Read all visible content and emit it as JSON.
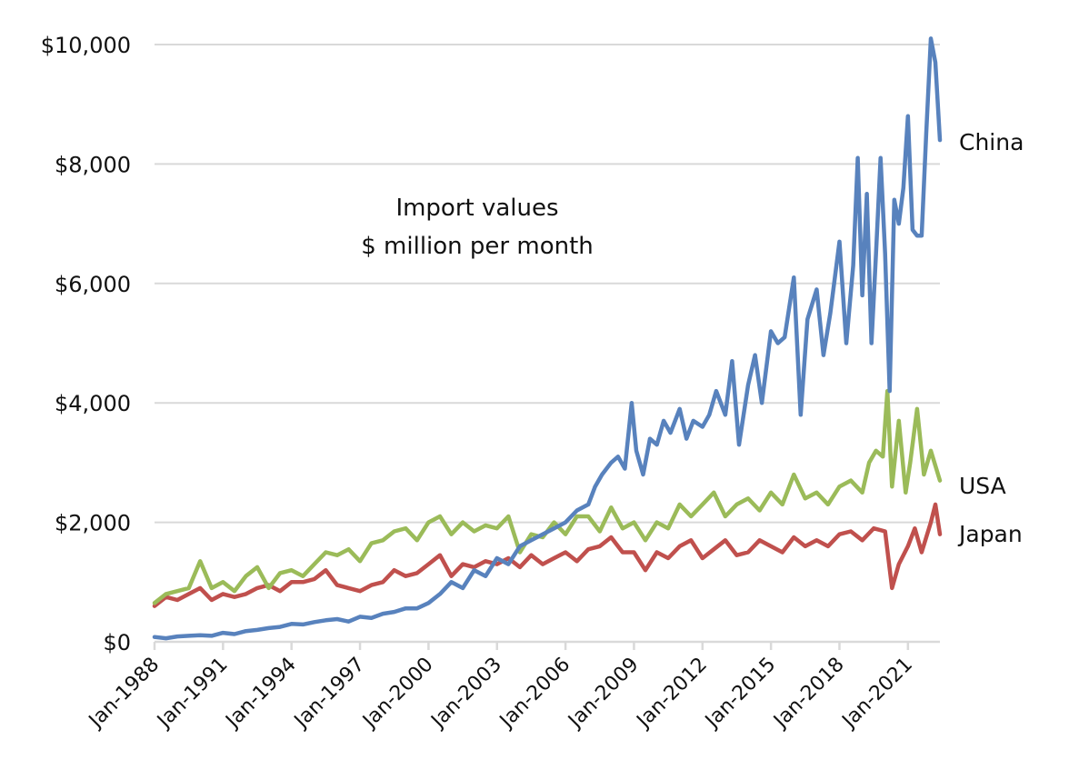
{
  "chart_data": {
    "type": "line",
    "title": "",
    "annotation": [
      "Import values",
      "$ million per month"
    ],
    "xlabel": "",
    "ylabel": "",
    "ylim": [
      0,
      10000
    ],
    "yticks": [
      0,
      2000,
      4000,
      6000,
      8000,
      10000
    ],
    "ytick_labels": [
      "$0",
      "$2,000",
      "$4,000",
      "$6,000",
      "$8,000",
      "$10,000"
    ],
    "xlim": [
      1988.0,
      2022.4
    ],
    "xticks": [
      1988,
      1991,
      1994,
      1997,
      2000,
      2003,
      2006,
      2009,
      2012,
      2015,
      2018,
      2021
    ],
    "xtick_labels": [
      "Jan-1988",
      "Jan-1991",
      "Jan-1994",
      "Jan-1997",
      "Jan-2000",
      "Jan-2003",
      "Jan-2006",
      "Jan-2009",
      "Jan-2012",
      "Jan-2015",
      "Jan-2018",
      "Jan-2021"
    ],
    "grid": true,
    "legend": "direct labels at right end of lines",
    "series": [
      {
        "name": "China",
        "color": "#5882bd",
        "x": [
          1988.0,
          1988.5,
          1989.0,
          1989.5,
          1990.0,
          1990.5,
          1991.0,
          1991.5,
          1992.0,
          1992.5,
          1993.0,
          1993.5,
          1994.0,
          1994.5,
          1995.0,
          1995.5,
          1996.0,
          1996.5,
          1997.0,
          1997.5,
          1998.0,
          1998.5,
          1999.0,
          1999.5,
          2000.0,
          2000.5,
          2001.0,
          2001.5,
          2002.0,
          2002.5,
          2003.0,
          2003.5,
          2004.0,
          2004.5,
          2005.0,
          2005.5,
          2006.0,
          2006.5,
          2007.0,
          2007.3,
          2007.6,
          2008.0,
          2008.3,
          2008.6,
          2008.9,
          2009.1,
          2009.4,
          2009.7,
          2010.0,
          2010.3,
          2010.6,
          2011.0,
          2011.3,
          2011.6,
          2012.0,
          2012.3,
          2012.6,
          2013.0,
          2013.3,
          2013.6,
          2014.0,
          2014.3,
          2014.6,
          2015.0,
          2015.3,
          2015.6,
          2016.0,
          2016.3,
          2016.6,
          2017.0,
          2017.3,
          2017.6,
          2018.0,
          2018.3,
          2018.6,
          2018.8,
          2019.0,
          2019.2,
          2019.4,
          2019.6,
          2019.8,
          2020.0,
          2020.2,
          2020.4,
          2020.6,
          2020.8,
          2021.0,
          2021.2,
          2021.4,
          2021.6,
          2021.8,
          2022.0,
          2022.2,
          2022.4
        ],
        "values": [
          80,
          60,
          90,
          100,
          110,
          100,
          150,
          130,
          180,
          200,
          230,
          250,
          300,
          290,
          330,
          360,
          380,
          340,
          420,
          400,
          470,
          500,
          560,
          560,
          650,
          800,
          1000,
          900,
          1200,
          1100,
          1400,
          1300,
          1600,
          1700,
          1800,
          1900,
          2000,
          2200,
          2300,
          2600,
          2800,
          3000,
          3100,
          2900,
          4000,
          3200,
          2800,
          3400,
          3300,
          3700,
          3500,
          3900,
          3400,
          3700,
          3600,
          3800,
          4200,
          3800,
          4700,
          3300,
          4300,
          4800,
          4000,
          5200,
          5000,
          5100,
          6100,
          3800,
          5400,
          5900,
          4800,
          5500,
          6700,
          5000,
          6300,
          8100,
          5800,
          7500,
          5000,
          6500,
          8100,
          6500,
          4200,
          7400,
          7000,
          7600,
          8800,
          6900,
          6800,
          6800,
          8500,
          10100,
          9700,
          8400
        ]
      },
      {
        "name": "USA",
        "color": "#9bbb59",
        "x": [
          1988.0,
          1988.5,
          1989.0,
          1989.5,
          1990.0,
          1990.5,
          1991.0,
          1991.5,
          1992.0,
          1992.5,
          1993.0,
          1993.5,
          1994.0,
          1994.5,
          1995.0,
          1995.5,
          1996.0,
          1996.5,
          1997.0,
          1997.5,
          1998.0,
          1998.5,
          1999.0,
          1999.5,
          2000.0,
          2000.5,
          2001.0,
          2001.5,
          2002.0,
          2002.5,
          2003.0,
          2003.5,
          2004.0,
          2004.5,
          2005.0,
          2005.5,
          2006.0,
          2006.5,
          2007.0,
          2007.5,
          2008.0,
          2008.5,
          2009.0,
          2009.5,
          2010.0,
          2010.5,
          2011.0,
          2011.5,
          2012.0,
          2012.5,
          2013.0,
          2013.5,
          2014.0,
          2014.5,
          2015.0,
          2015.5,
          2016.0,
          2016.5,
          2017.0,
          2017.5,
          2018.0,
          2018.5,
          2019.0,
          2019.3,
          2019.6,
          2019.9,
          2020.1,
          2020.3,
          2020.6,
          2020.9,
          2021.1,
          2021.4,
          2021.7,
          2022.0,
          2022.4
        ],
        "values": [
          650,
          800,
          850,
          900,
          1350,
          900,
          1000,
          850,
          1100,
          1250,
          900,
          1150,
          1200,
          1100,
          1300,
          1500,
          1450,
          1550,
          1350,
          1650,
          1700,
          1850,
          1900,
          1700,
          2000,
          2100,
          1800,
          2000,
          1850,
          1950,
          1900,
          2100,
          1500,
          1800,
          1750,
          2000,
          1800,
          2100,
          2100,
          1850,
          2250,
          1900,
          2000,
          1700,
          2000,
          1900,
          2300,
          2100,
          2300,
          2500,
          2100,
          2300,
          2400,
          2200,
          2500,
          2300,
          2800,
          2400,
          2500,
          2300,
          2600,
          2700,
          2500,
          3000,
          3200,
          3100,
          4200,
          2600,
          3700,
          2500,
          3000,
          3900,
          2800,
          3200,
          2700
        ]
      },
      {
        "name": "Japan",
        "color": "#c0504d",
        "x": [
          1988.0,
          1988.5,
          1989.0,
          1989.5,
          1990.0,
          1990.5,
          1991.0,
          1991.5,
          1992.0,
          1992.5,
          1993.0,
          1993.5,
          1994.0,
          1994.5,
          1995.0,
          1995.5,
          1996.0,
          1996.5,
          1997.0,
          1997.5,
          1998.0,
          1998.5,
          1999.0,
          1999.5,
          2000.0,
          2000.5,
          2001.0,
          2001.5,
          2002.0,
          2002.5,
          2003.0,
          2003.5,
          2004.0,
          2004.5,
          2005.0,
          2005.5,
          2006.0,
          2006.5,
          2007.0,
          2007.5,
          2008.0,
          2008.5,
          2009.0,
          2009.5,
          2010.0,
          2010.5,
          2011.0,
          2011.5,
          2012.0,
          2012.5,
          2013.0,
          2013.5,
          2014.0,
          2014.5,
          2015.0,
          2015.5,
          2016.0,
          2016.5,
          2017.0,
          2017.5,
          2018.0,
          2018.5,
          2019.0,
          2019.5,
          2020.0,
          2020.3,
          2020.6,
          2021.0,
          2021.3,
          2021.6,
          2022.0,
          2022.2,
          2022.4
        ],
        "values": [
          600,
          750,
          700,
          800,
          900,
          700,
          800,
          750,
          800,
          900,
          950,
          850,
          1000,
          1000,
          1050,
          1200,
          950,
          900,
          850,
          950,
          1000,
          1200,
          1100,
          1150,
          1300,
          1450,
          1100,
          1300,
          1250,
          1350,
          1300,
          1400,
          1250,
          1450,
          1300,
          1400,
          1500,
          1350,
          1550,
          1600,
          1750,
          1500,
          1500,
          1200,
          1500,
          1400,
          1600,
          1700,
          1400,
          1550,
          1700,
          1450,
          1500,
          1700,
          1600,
          1500,
          1750,
          1600,
          1700,
          1600,
          1800,
          1850,
          1700,
          1900,
          1850,
          900,
          1300,
          1600,
          1900,
          1500,
          2000,
          2300,
          1800
        ]
      }
    ]
  }
}
